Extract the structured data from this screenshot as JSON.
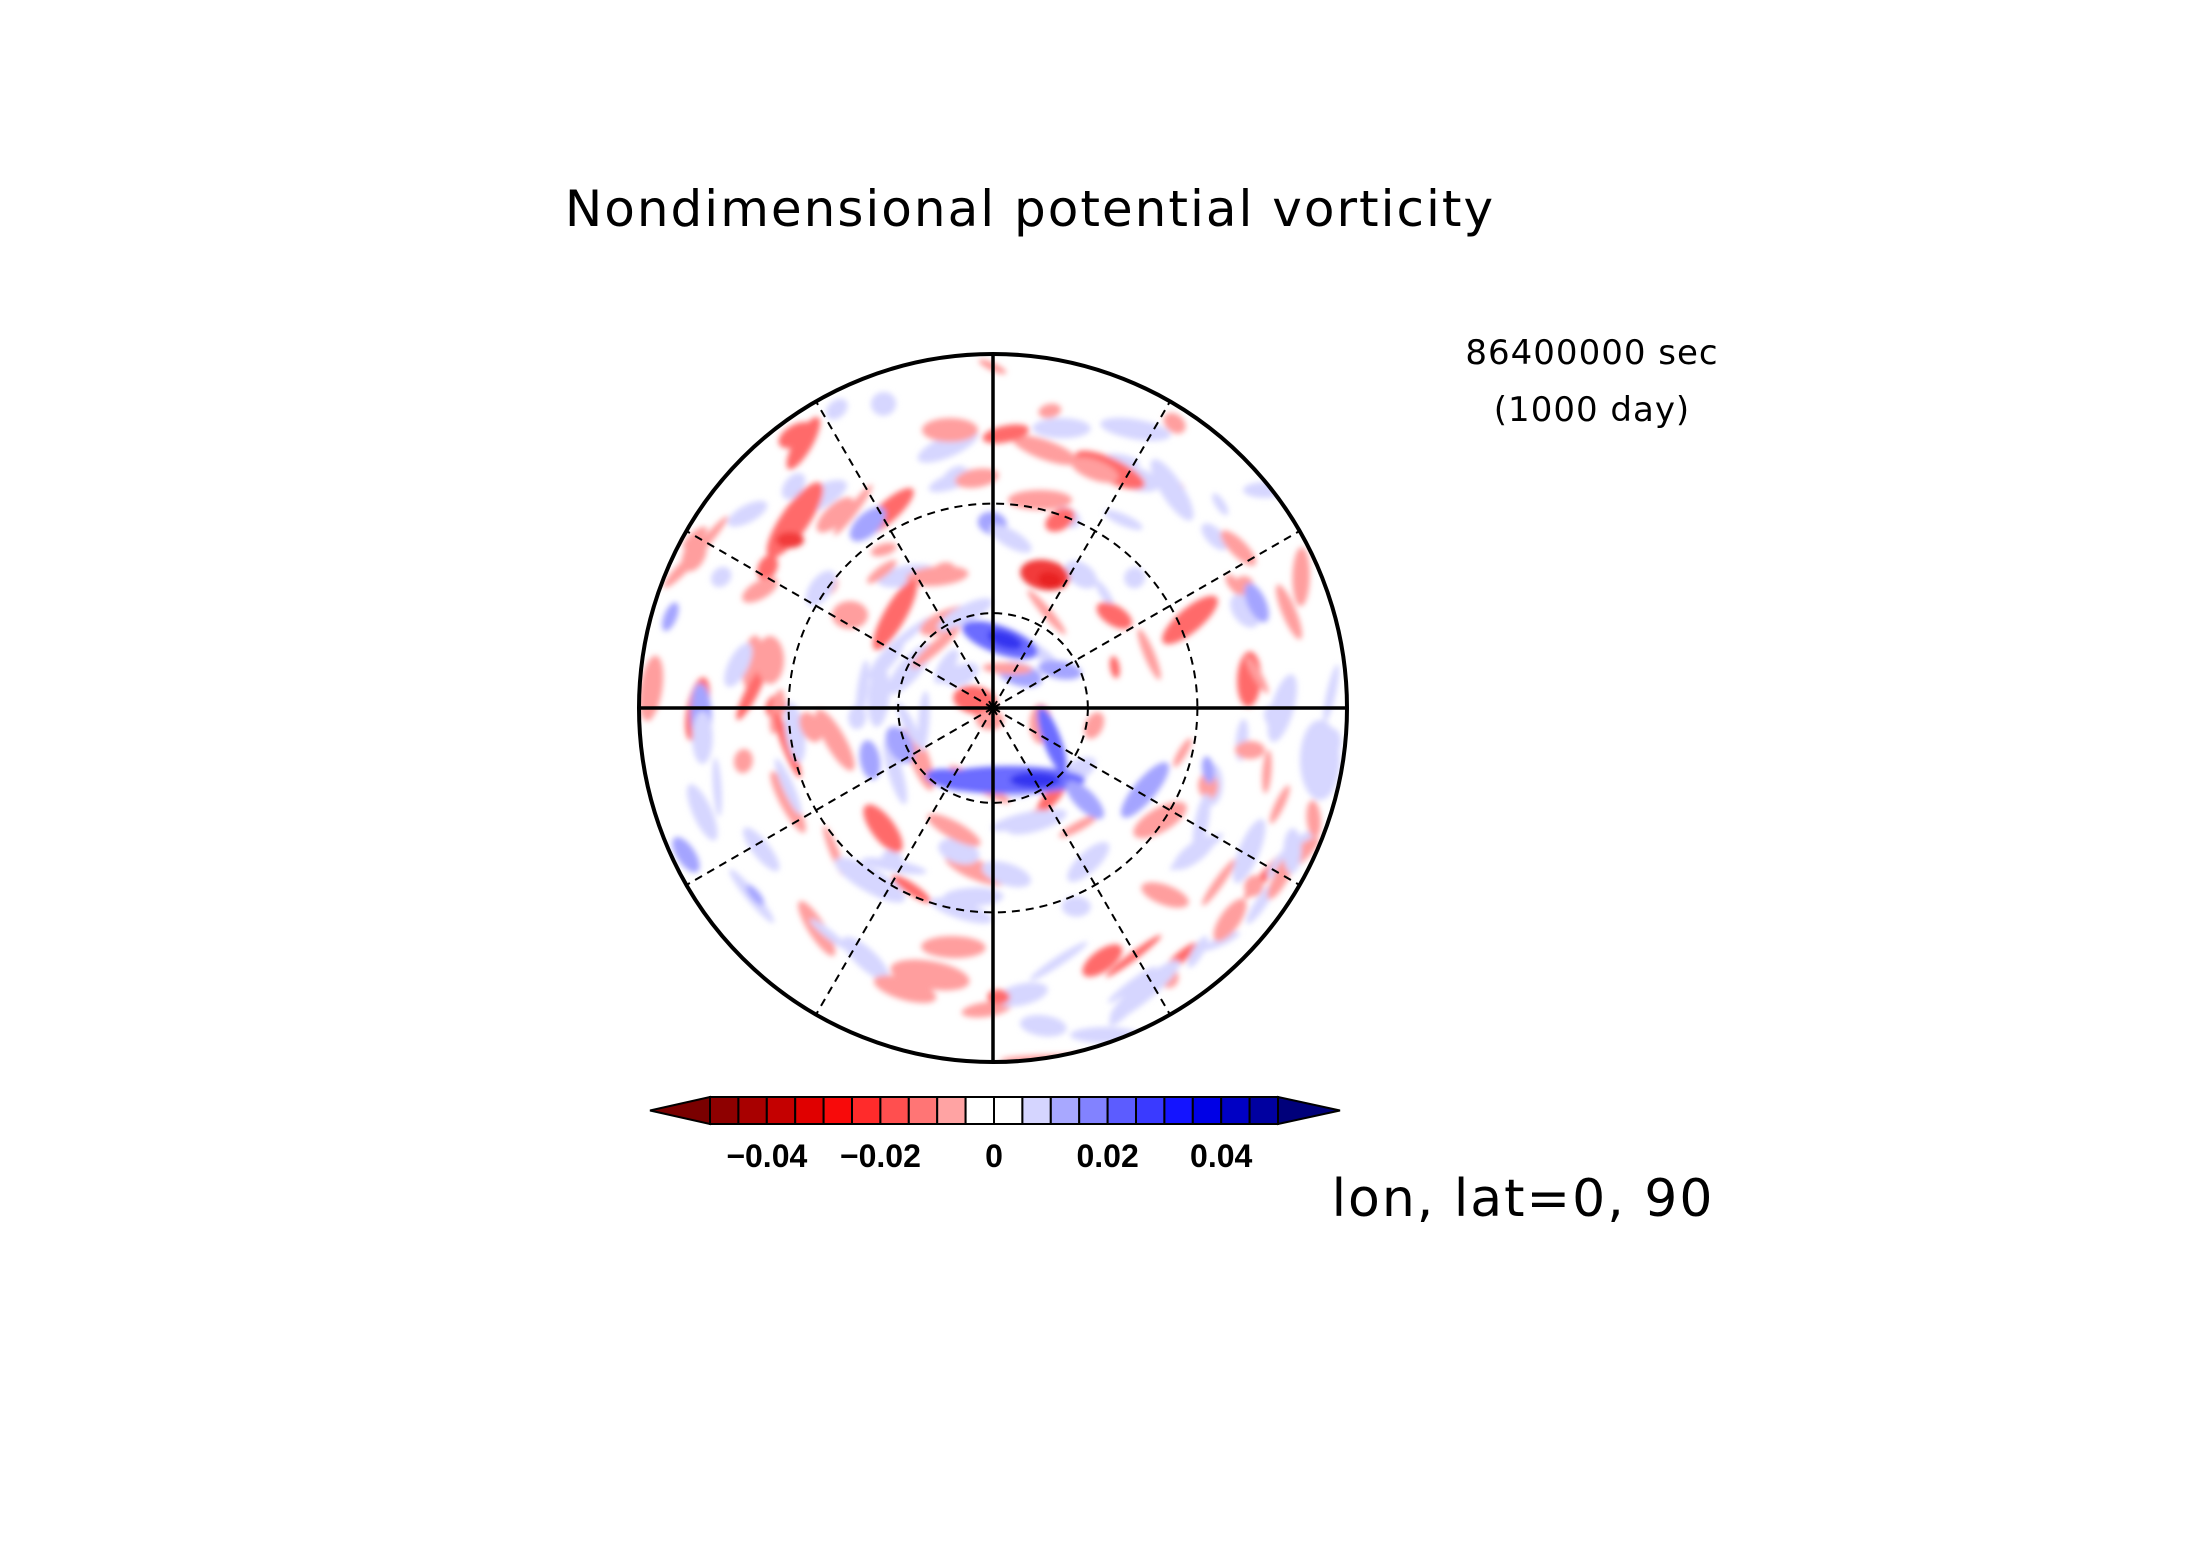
{
  "title": "Nondimensional potential vorticity",
  "time": {
    "seconds": "86400000 sec",
    "days": "(1000 day)"
  },
  "view_label": "lon, lat=0, 90",
  "colorbar": {
    "tick_labels": [
      "−0.04",
      "−0.02",
      "0",
      "0.02",
      "0.04"
    ],
    "tick_values": [
      -0.04,
      -0.02,
      0,
      0.02,
      0.04
    ],
    "range": [
      -0.05,
      0.05
    ],
    "step": 0.005,
    "under_color": "#7a0000",
    "over_color": "#00007a",
    "colors": [
      "#8e0000",
      "#a80000",
      "#c40000",
      "#e00000",
      "#f80a0a",
      "#ff2b2b",
      "#ff4f4f",
      "#ff7575",
      "#ffa3a3",
      "#ffffff",
      "#ffffff",
      "#d5d5ff",
      "#a8a8ff",
      "#8282ff",
      "#5c5cff",
      "#3a3aff",
      "#1414ff",
      "#0000e6",
      "#0000c4",
      "#0000a0"
    ]
  },
  "map": {
    "projection": "polar-stereographic",
    "center_latitude": 90,
    "grid": {
      "latitude_circles": [
        30,
        60
      ],
      "meridian_step_deg": 30
    }
  }
}
